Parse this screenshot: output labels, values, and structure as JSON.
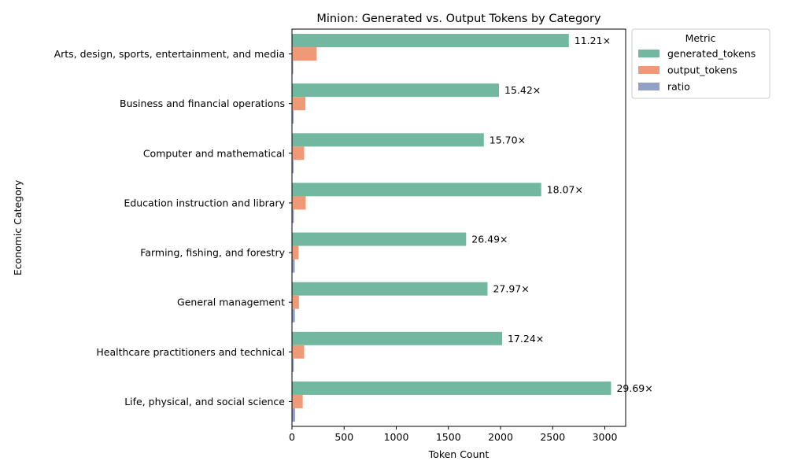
{
  "chart_data": {
    "type": "bar",
    "orientation": "horizontal",
    "title": "Minion: Generated vs. Output Tokens by Category",
    "xlabel": "Token Count",
    "ylabel": "Economic Category",
    "xlim": [
      0,
      3200
    ],
    "xticks": [
      0,
      500,
      1000,
      1500,
      2000,
      2500,
      3000
    ],
    "categories": [
      "Arts, design, sports, entertainment, and media",
      "Business and financial operations",
      "Computer and mathematical",
      "Education instruction and library",
      "Farming, fishing, and forestry",
      "General management",
      "Healthcare practitioners and technical",
      "Life, physical, and social science"
    ],
    "series": [
      {
        "name": "generated_tokens",
        "color": "#72b8a0",
        "values": [
          2655,
          1985,
          1840,
          2390,
          1670,
          1875,
          2015,
          3060
        ]
      },
      {
        "name": "output_tokens",
        "color": "#ef9a76",
        "values": [
          237,
          129,
          117,
          132,
          63,
          67,
          117,
          103
        ]
      },
      {
        "name": "ratio",
        "color": "#93a0c8",
        "values": [
          11.21,
          15.42,
          15.7,
          18.07,
          26.49,
          27.97,
          17.24,
          29.69
        ]
      }
    ],
    "bar_labels": [
      "11.21×",
      "15.42×",
      "15.70×",
      "18.07×",
      "26.49×",
      "27.97×",
      "17.24×",
      "29.69×"
    ],
    "legend": {
      "title": "Metric",
      "position": "outside-top-right"
    },
    "grid": false
  }
}
